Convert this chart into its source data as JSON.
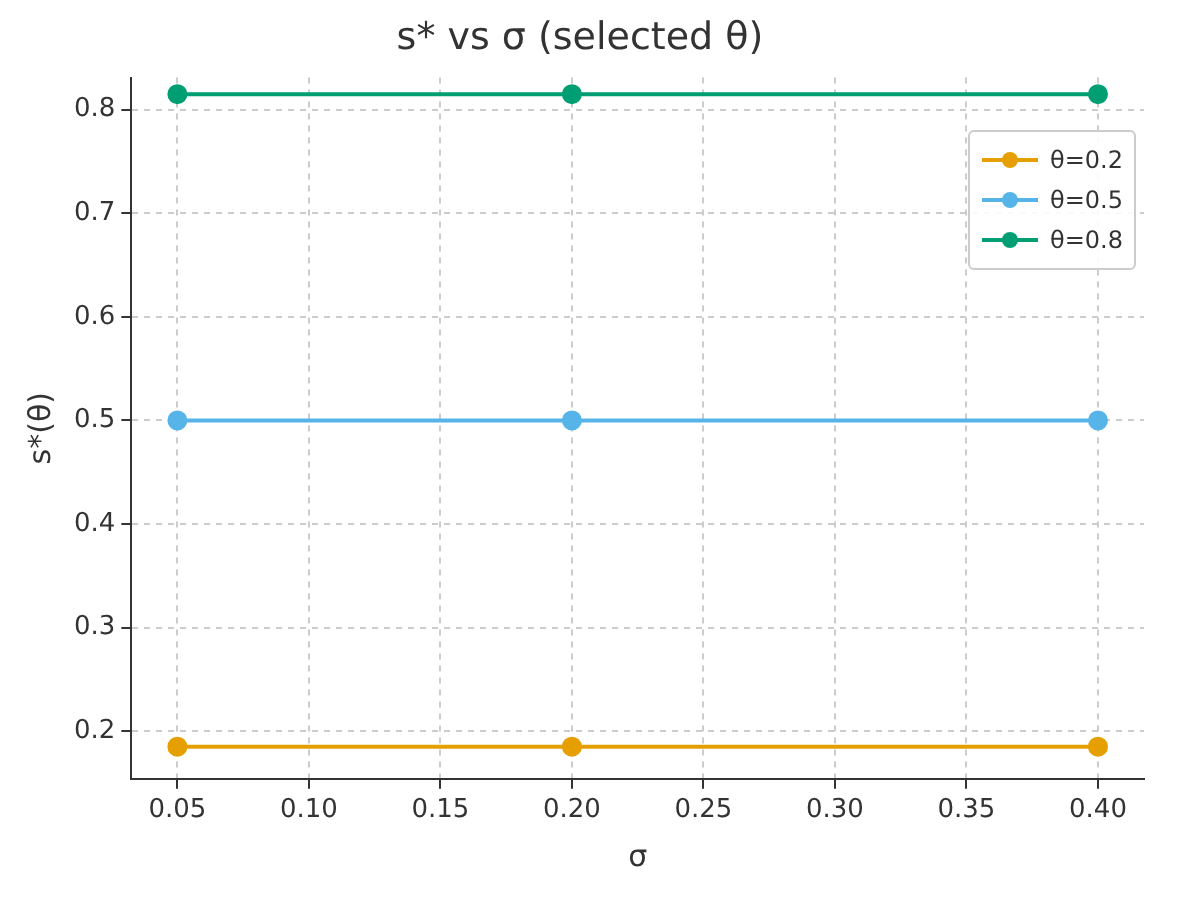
{
  "chart_data": {
    "type": "line",
    "title": "s* vs σ (selected θ)",
    "xlabel": "σ",
    "ylabel": "s*(θ)",
    "x": [
      0.05,
      0.2,
      0.4
    ],
    "series": [
      {
        "name": "θ=0.2",
        "color": "#e69f00",
        "values": [
          0.185,
          0.185,
          0.185
        ]
      },
      {
        "name": "θ=0.5",
        "color": "#56b4e9",
        "values": [
          0.5,
          0.5,
          0.5
        ]
      },
      {
        "name": "θ=0.8",
        "color": "#009e73",
        "values": [
          0.815,
          0.815,
          0.815
        ]
      }
    ],
    "xlim": [
      0.0325,
      0.4175
    ],
    "xticks": [
      0.05,
      {
        "value": 0.1,
        "label": "0.10"
      },
      0.15,
      {
        "value": 0.2,
        "label": "0.20"
      },
      0.25,
      {
        "value": 0.3,
        "label": "0.30"
      },
      0.35,
      {
        "value": 0.4,
        "label": "0.40"
      }
    ],
    "ylim": [
      0.154,
      0.831
    ],
    "yticks": [
      0.2,
      0.3,
      0.4,
      0.5,
      0.6,
      0.7,
      0.8
    ],
    "grid": true,
    "legend": "top right",
    "marker": "circle",
    "line_style": "solid"
  }
}
